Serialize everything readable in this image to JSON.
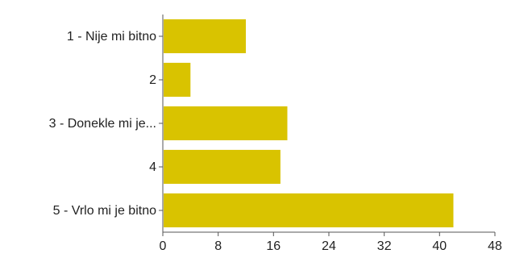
{
  "chart_data": {
    "type": "bar",
    "orientation": "horizontal",
    "categories": [
      "1 - Nije mi bitno",
      "2",
      "3 - Donekle mi je...",
      "4",
      "5 - Vrlo mi je bitno"
    ],
    "values": [
      12,
      4,
      18,
      17,
      42
    ],
    "xlim": [
      0,
      48
    ],
    "xticks": [
      "0",
      "8",
      "16",
      "24",
      "32",
      "40",
      "48"
    ],
    "grid": false,
    "legend": "none",
    "colors": {
      "bar": "#d9c300",
      "axis": "#555555",
      "text": "#222222"
    }
  }
}
